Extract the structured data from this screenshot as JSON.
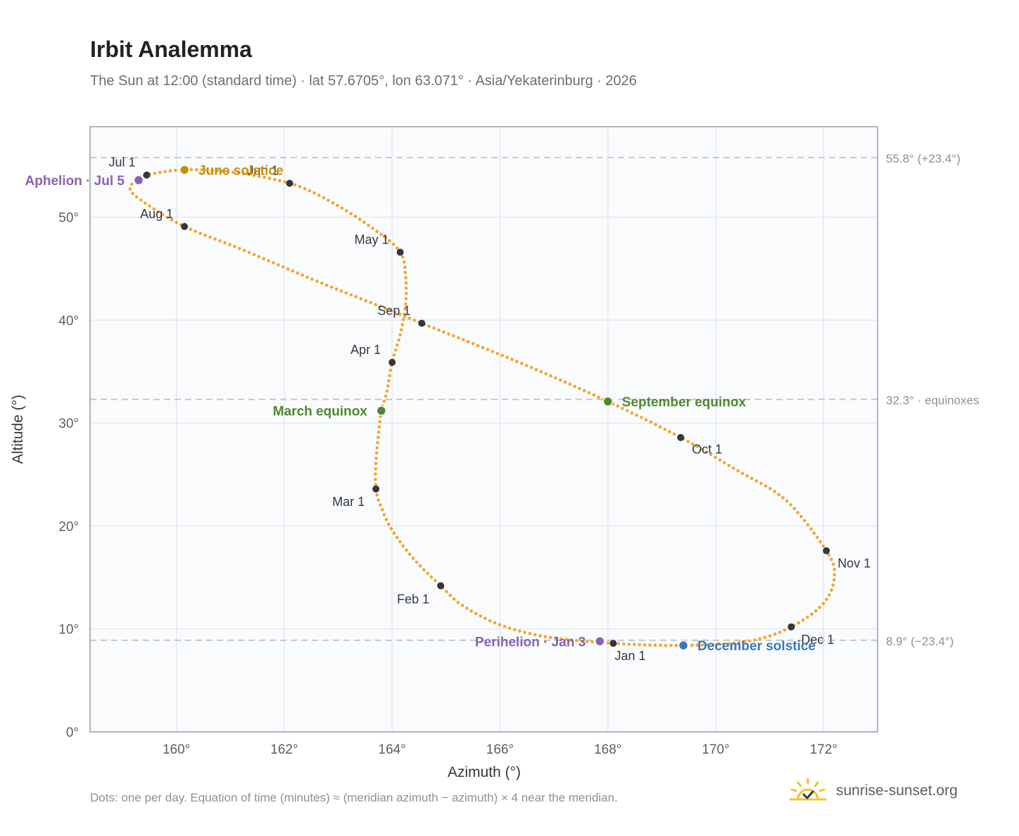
{
  "header": {
    "title": "Irbit Analemma",
    "subtitle": "The Sun at 12:00 (standard time) · lat 57.6705°, lon 63.071° · Asia/Yekaterinburg · 2026"
  },
  "footer": {
    "note": "Dots: one per day. Equation of time (minutes) ≈ (meridian azimuth − azimuth) × 4 near the meridian.",
    "brand": "sunrise-sunset.org",
    "brand_icon": "sun-check-icon"
  },
  "colors": {
    "path": "#f2a72e",
    "month_marker": "#333840",
    "solstice_june": "#c8900c",
    "equinox": "#4f8a2d",
    "solstice_december": "#3a77bb",
    "apsis": "#8a62b0",
    "ref_line": "#b4c0ca",
    "plot_bg": "#f9fbfd",
    "grid": "#e3e8ee",
    "frame": "#9aa5b2"
  },
  "chart_data": {
    "type": "scatter",
    "xlabel": "Azimuth (°)",
    "ylabel": "Altitude (°)",
    "xlim": [
      158.4,
      173.0
    ],
    "ylim": [
      0,
      58.8
    ],
    "xticks": [
      160,
      162,
      164,
      166,
      168,
      170,
      172
    ],
    "yticks": [
      0,
      10,
      20,
      30,
      40,
      50
    ],
    "tick_suffix": "°",
    "grid": true,
    "reference_lines": [
      {
        "value": 55.8,
        "label": "55.8° (+23.4°)"
      },
      {
        "value": 32.3,
        "label": "32.3° · equinoxes"
      },
      {
        "value": 8.9,
        "label": "8.9° (−23.4°)"
      }
    ],
    "path_points": [
      {
        "x": 168.1,
        "y": 8.6
      },
      {
        "x": 166.9,
        "y": 9.2
      },
      {
        "x": 166.0,
        "y": 10.4
      },
      {
        "x": 165.3,
        "y": 12.3
      },
      {
        "x": 164.9,
        "y": 14.2
      },
      {
        "x": 164.4,
        "y": 16.8
      },
      {
        "x": 164.0,
        "y": 19.6
      },
      {
        "x": 163.8,
        "y": 21.8
      },
      {
        "x": 163.7,
        "y": 23.6
      },
      {
        "x": 163.7,
        "y": 26.2
      },
      {
        "x": 163.75,
        "y": 29.0
      },
      {
        "x": 163.8,
        "y": 31.2
      },
      {
        "x": 163.9,
        "y": 33.0
      },
      {
        "x": 164.0,
        "y": 35.9
      },
      {
        "x": 164.15,
        "y": 38.6
      },
      {
        "x": 164.25,
        "y": 41.5
      },
      {
        "x": 164.25,
        "y": 44.3
      },
      {
        "x": 164.15,
        "y": 46.6
      },
      {
        "x": 163.7,
        "y": 48.7
      },
      {
        "x": 162.9,
        "y": 51.4
      },
      {
        "x": 162.1,
        "y": 53.3
      },
      {
        "x": 161.0,
        "y": 54.4
      },
      {
        "x": 160.1,
        "y": 54.6
      },
      {
        "x": 159.45,
        "y": 54.1
      },
      {
        "x": 159.25,
        "y": 53.6
      },
      {
        "x": 159.15,
        "y": 52.6
      },
      {
        "x": 159.5,
        "y": 51.1
      },
      {
        "x": 160.15,
        "y": 49.1
      },
      {
        "x": 161.2,
        "y": 46.9
      },
      {
        "x": 162.6,
        "y": 43.8
      },
      {
        "x": 163.8,
        "y": 41.3
      },
      {
        "x": 164.55,
        "y": 39.7
      },
      {
        "x": 166.4,
        "y": 35.8
      },
      {
        "x": 168.0,
        "y": 32.1
      },
      {
        "x": 169.35,
        "y": 28.6
      },
      {
        "x": 170.4,
        "y": 25.4
      },
      {
        "x": 171.3,
        "y": 22.5
      },
      {
        "x": 172.05,
        "y": 17.6
      },
      {
        "x": 172.2,
        "y": 15.1
      },
      {
        "x": 172.0,
        "y": 12.5
      },
      {
        "x": 171.4,
        "y": 10.2
      },
      {
        "x": 170.6,
        "y": 8.8
      },
      {
        "x": 169.4,
        "y": 8.4
      },
      {
        "x": 168.1,
        "y": 8.6
      }
    ],
    "month_markers": [
      {
        "label": "Jan 1",
        "x": 168.1,
        "y": 8.6,
        "anchor": "start",
        "dx": 2,
        "dy": 24
      },
      {
        "label": "Feb 1",
        "x": 164.9,
        "y": 14.2,
        "anchor": "end",
        "dx": -16,
        "dy": 25
      },
      {
        "label": "Mar 1",
        "x": 163.7,
        "y": 23.6,
        "anchor": "end",
        "dx": -16,
        "dy": 24
      },
      {
        "label": "Apr 1",
        "x": 164.0,
        "y": 35.9,
        "anchor": "end",
        "dx": -16,
        "dy": -12
      },
      {
        "label": "May 1",
        "x": 164.15,
        "y": 46.6,
        "anchor": "end",
        "dx": -16,
        "dy": -12
      },
      {
        "label": "Jun 1",
        "x": 162.1,
        "y": 53.3,
        "anchor": "end",
        "dx": -16,
        "dy": -12
      },
      {
        "label": "Jul 1",
        "x": 159.45,
        "y": 54.1,
        "anchor": "end",
        "dx": -16,
        "dy": -12
      },
      {
        "label": "Aug 1",
        "x": 160.15,
        "y": 49.1,
        "anchor": "end",
        "dx": -16,
        "dy": -12
      },
      {
        "label": "Sep 1",
        "x": 164.55,
        "y": 39.7,
        "anchor": "end",
        "dx": -16,
        "dy": -12
      },
      {
        "label": "Oct 1",
        "x": 169.35,
        "y": 28.6,
        "anchor": "start",
        "dx": 16,
        "dy": 23
      },
      {
        "label": "Nov 1",
        "x": 172.05,
        "y": 17.6,
        "anchor": "start",
        "dx": 16,
        "dy": 24
      },
      {
        "label": "Dec 1",
        "x": 171.4,
        "y": 10.2,
        "anchor": "start",
        "dx": 14,
        "dy": 24
      }
    ],
    "events": [
      {
        "label": "June solstice",
        "x": 160.15,
        "y": 54.6,
        "color_key": "solstice_june",
        "anchor": "start",
        "dx": 20,
        "dy": 7
      },
      {
        "label": "Aphelion · Jul 5",
        "x": 159.3,
        "y": 53.6,
        "color_key": "apsis",
        "anchor": "end",
        "dx": -20,
        "dy": 7
      },
      {
        "label": "March equinox",
        "x": 163.8,
        "y": 31.2,
        "color_key": "equinox",
        "anchor": "end",
        "dx": -20,
        "dy": 7
      },
      {
        "label": "September equinox",
        "x": 168.0,
        "y": 32.1,
        "color_key": "equinox",
        "anchor": "start",
        "dx": 20,
        "dy": 7
      },
      {
        "label": "Perihelion · Jan 3",
        "x": 167.85,
        "y": 8.8,
        "color_key": "apsis",
        "anchor": "end",
        "dx": -20,
        "dy": 7
      },
      {
        "label": "December solstice",
        "x": 169.4,
        "y": 8.4,
        "color_key": "solstice_december",
        "anchor": "start",
        "dx": 20,
        "dy": 7
      }
    ]
  }
}
